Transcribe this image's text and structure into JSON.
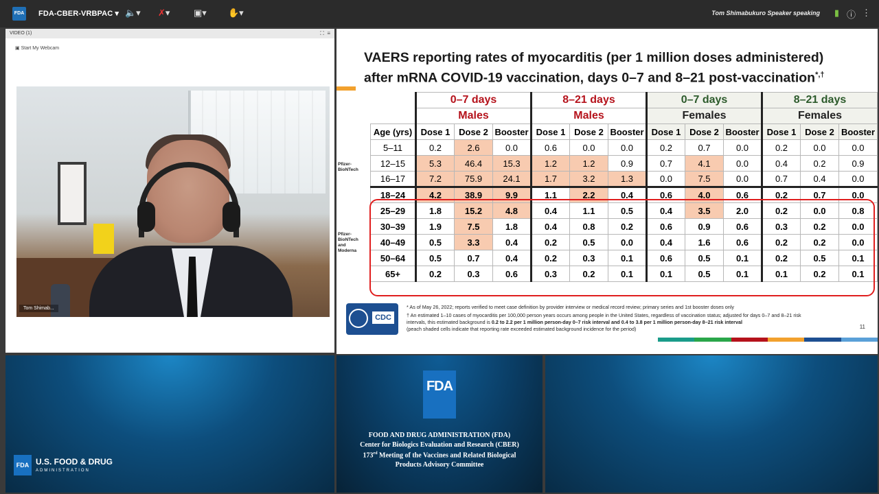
{
  "topbar": {
    "logo": "FDA",
    "meeting_title": "FDA-CBER-VRBPAC",
    "speaker_status": "Tom Shimabukuro Speaker speaking"
  },
  "video_pod": {
    "header": "VIDEO (1)",
    "webcam_button": "Start My Webcam",
    "name_tag": "Tom Shimab..."
  },
  "slide": {
    "title_line1": "VAERS reporting rates of myocarditis (per 1 million doses administered)",
    "title_line2": "after mRNA COVID-19 vaccination, days 0–7 and 8–21 post-vaccination",
    "title_marks": "*,†",
    "table": {
      "group_days": [
        "0–7 days",
        "8–21 days",
        "0–7 days",
        "8–21 days"
      ],
      "group_sex": [
        "Males",
        "Males",
        "Females",
        "Females"
      ],
      "age_header": "Age (yrs)",
      "dose_headers": [
        "Dose 1",
        "Dose 2",
        "Booster"
      ],
      "brace_pfizer": "Pfizer-BioNTech",
      "brace_both": "Pfizer-BioNTech and Moderna",
      "rows": [
        {
          "age": "5–11",
          "vals": [
            "0.2",
            "2.6",
            "0.0",
            "0.6",
            "0.0",
            "0.0",
            "0.2",
            "0.7",
            "0.0",
            "0.2",
            "0.0",
            "0.0"
          ],
          "peach": [
            1
          ],
          "bold": false
        },
        {
          "age": "12–15",
          "vals": [
            "5.3",
            "46.4",
            "15.3",
            "1.2",
            "1.2",
            "0.9",
            "0.7",
            "4.1",
            "0.0",
            "0.4",
            "0.2",
            "0.9"
          ],
          "peach": [
            0,
            1,
            2,
            3,
            4,
            7
          ],
          "bold": false
        },
        {
          "age": "16–17",
          "vals": [
            "7.2",
            "75.9",
            "24.1",
            "1.7",
            "3.2",
            "1.3",
            "0.0",
            "7.5",
            "0.0",
            "0.7",
            "0.4",
            "0.0"
          ],
          "peach": [
            0,
            1,
            2,
            3,
            4,
            5,
            7
          ],
          "bold": false
        },
        {
          "age": "18–24",
          "vals": [
            "4.2",
            "38.9",
            "9.9",
            "1.1",
            "2.2",
            "0.4",
            "0.6",
            "4.0",
            "0.6",
            "0.2",
            "0.7",
            "0.0"
          ],
          "peach": [
            0,
            1,
            2,
            4,
            7
          ],
          "bold": true
        },
        {
          "age": "25–29",
          "vals": [
            "1.8",
            "15.2",
            "4.8",
            "0.4",
            "1.1",
            "0.5",
            "0.4",
            "3.5",
            "2.0",
            "0.2",
            "0.0",
            "0.8"
          ],
          "peach": [
            1,
            2,
            7
          ],
          "bold": true
        },
        {
          "age": "30–39",
          "vals": [
            "1.9",
            "7.5",
            "1.8",
            "0.4",
            "0.8",
            "0.2",
            "0.6",
            "0.9",
            "0.6",
            "0.3",
            "0.2",
            "0.0"
          ],
          "peach": [
            1
          ],
          "bold": true
        },
        {
          "age": "40–49",
          "vals": [
            "0.5",
            "3.3",
            "0.4",
            "0.2",
            "0.5",
            "0.0",
            "0.4",
            "1.6",
            "0.6",
            "0.2",
            "0.2",
            "0.0"
          ],
          "peach": [
            1
          ],
          "bold": true
        },
        {
          "age": "50–64",
          "vals": [
            "0.5",
            "0.7",
            "0.4",
            "0.2",
            "0.3",
            "0.1",
            "0.6",
            "0.5",
            "0.1",
            "0.2",
            "0.5",
            "0.1"
          ],
          "peach": [],
          "bold": true
        },
        {
          "age": "65+",
          "vals": [
            "0.2",
            "0.3",
            "0.6",
            "0.3",
            "0.2",
            "0.1",
            "0.1",
            "0.5",
            "0.1",
            "0.1",
            "0.2",
            "0.1"
          ],
          "peach": [],
          "bold": true
        }
      ]
    },
    "footnote1": "* As of May 26, 2022; reports verified to meet case definition by provider interview or medical record review; primary series and 1st booster doses only",
    "footnote2_a": "† An estimated 1–10 cases of myocarditis per 100,000 person years occurs among people in the United States, regardless of vaccination status; adjusted for days 0–7 and 8–21 risk intervals, this estimated background is ",
    "footnote2_b": "0.2 to 2.2 per 1 million person-day 0–7 risk interval and 0.4 to 3.8 per 1 million person-day 8–21 risk interval",
    "footnote3": "(peach shaded cells indicate that reporting rate exceeded estimated background incidence for the period)",
    "cdc": "CDC",
    "page_number": "11",
    "colors": {
      "peach": "#f8cbb0",
      "male_header": "#b5121b",
      "female_header": "#2c5a2b",
      "highlight_box": "#e01d1d"
    }
  },
  "mid_panel": {
    "logo": "FDA",
    "line1": "FOOD AND DRUG ADMINISTRATION (FDA)",
    "line2": "Center for Biologics Evaluation and Research (CBER)",
    "line3_pre": "173",
    "line3_sup": "rd",
    "line3_post": " Meeting of the Vaccines and Related Biological",
    "line4": "Products Advisory Committee"
  },
  "left_panel": {
    "logo": "FDA",
    "brand": "U.S. FOOD & DRUG",
    "brand_sub": "ADMINISTRATION"
  }
}
